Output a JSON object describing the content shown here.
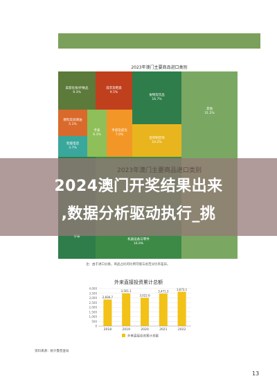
{
  "treemap": {
    "title": "2023年澳门主要商品进口类别",
    "title_ghost": "2023年澳门主要商品进口类别",
    "cells": [
      {
        "label": "美容化妆/护肤品",
        "value": "9.3%",
        "color": "#5c7a3a"
      },
      {
        "label": "成衣及鞋类",
        "value": "9.5%",
        "color": "#c0401e"
      },
      {
        "label": "食物及饮品",
        "value": "16.7%",
        "color": "#2f7d4a"
      },
      {
        "label": "其他",
        "value": "31.2%",
        "color": "#7aa862"
      },
      {
        "label": "燃料及润滑油",
        "value": "5.1%",
        "color": "#d96a2b"
      },
      {
        "label": "手表",
        "value": "6.3%",
        "color": "#8fbf58"
      },
      {
        "label": "手袋及皮包",
        "value": "7.0%",
        "color": "#f29727"
      },
      {
        "label": "首饰制首饰",
        "value": "10.2%",
        "color": "#e8b51e"
      },
      {
        "label": "智能电话",
        "value": "3.7%",
        "color": "#3aa79c"
      },
      {
        "label": "手表",
        "value": "",
        "color": "#2f7d4a"
      },
      {
        "label": "机器设备与零件",
        "value": "16.9%",
        "color": "#3d8a47"
      }
    ],
    "note": "注：由于进口分类，商品占比的比例可能与总百分比有差异。"
  },
  "banner": {
    "line1": "2024澳门开奖结果出来",
    "line2": ",数据分析驱动执行_挑"
  },
  "fdi_chart": {
    "title": "外来直接投资累计总额",
    "source": "资料来源：统计暨普查局",
    "page_number": "13",
    "bar_color": "#f2c218"
  },
  "chart_data": {
    "type": "bar",
    "title": "外来直接投资累计总额",
    "categories": [
      "2018",
      "2019",
      "2020",
      "2021",
      "2022"
    ],
    "series": [
      {
        "name": "外来直接投资累计总额",
        "values": [
          2836.7,
          3501.1,
          3022.6,
          3471.3,
          3673.1
        ]
      }
    ],
    "value_labels": [
      "2,836.7",
      "3,501.1",
      "3,022.6",
      "3,471.3",
      "3,673.1"
    ],
    "ylim": [
      0,
      4000
    ],
    "yticks": [
      "0",
      "500",
      "1,000",
      "1,500",
      "2,000",
      "2,500",
      "3,000",
      "3,500",
      "4,000"
    ],
    "grid": true,
    "legend_position": "bottom"
  }
}
